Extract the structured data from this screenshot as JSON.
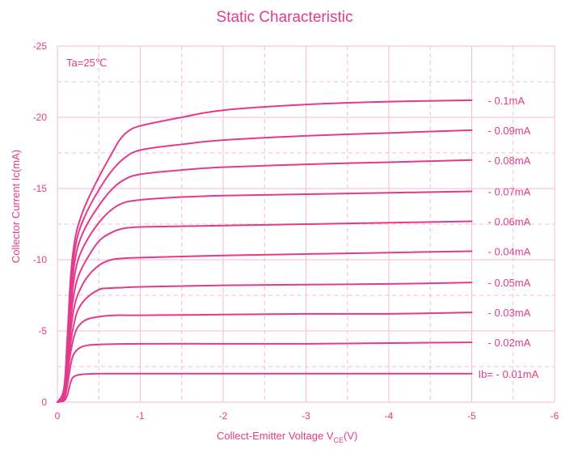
{
  "chart_data": {
    "type": "line",
    "title": "Static Characteristic",
    "xlabel_main": "Collect-Emitter Voltage   V",
    "xlabel_sub": "CE",
    "xlabel_tail": "(V)",
    "ylabel": "Collector  Current   Ic(mA)",
    "annotation": "Ta=25℃",
    "xlim": [
      0,
      -6
    ],
    "ylim": [
      0,
      -25
    ],
    "x_ticks": [
      0,
      -1,
      -2,
      -3,
      -4,
      -5,
      -6
    ],
    "x_tick_labels": [
      "0",
      "-1",
      "-2",
      "-3",
      "-4",
      "-5",
      "-6"
    ],
    "y_ticks": [
      0,
      -5,
      -10,
      -15,
      -20,
      -25
    ],
    "y_tick_labels": [
      "0",
      "-5",
      "-10",
      "-15",
      "-20",
      "-25"
    ],
    "grid": "on",
    "line_color": "#e23a8c",
    "grid_color": "#f7b9d6",
    "series": [
      {
        "name": "Ib= - 0.01mA",
        "x": [
          0,
          -0.08,
          -0.12,
          -0.16,
          -0.2,
          -0.3,
          -0.5,
          -1,
          -2,
          -3,
          -4,
          -5
        ],
        "y": [
          0,
          -0.1,
          -0.5,
          -1.4,
          -1.8,
          -1.95,
          -2.0,
          -2.0,
          -2.0,
          -2.0,
          -2.0,
          -2.0
        ]
      },
      {
        "name": "- 0.02mA",
        "x": [
          0,
          -0.08,
          -0.12,
          -0.16,
          -0.2,
          -0.3,
          -0.5,
          -1,
          -2,
          -3,
          -4,
          -5
        ],
        "y": [
          0,
          -0.2,
          -1.2,
          -2.6,
          -3.4,
          -3.9,
          -4.05,
          -4.1,
          -4.1,
          -4.1,
          -4.15,
          -4.2
        ]
      },
      {
        "name": "- 0.03mA",
        "x": [
          0,
          -0.08,
          -0.12,
          -0.16,
          -0.2,
          -0.25,
          -0.35,
          -0.5,
          -0.7,
          -1,
          -2,
          -3,
          -4,
          -5
        ],
        "y": [
          0,
          -0.3,
          -1.8,
          -3.5,
          -4.6,
          -5.3,
          -5.8,
          -6.0,
          -6.1,
          -6.1,
          -6.15,
          -6.2,
          -6.2,
          -6.3
        ]
      },
      {
        "name": "- 0.05mA",
        "x": [
          0,
          -0.08,
          -0.12,
          -0.16,
          -0.2,
          -0.25,
          -0.35,
          -0.5,
          -0.6,
          -0.8,
          -1,
          -2,
          -3,
          -4,
          -5
        ],
        "y": [
          0,
          -0.4,
          -2.2,
          -4.2,
          -5.5,
          -6.5,
          -7.3,
          -7.9,
          -8.0,
          -8.05,
          -8.1,
          -8.2,
          -8.25,
          -8.3,
          -8.4
        ]
      },
      {
        "name": "- 0.04mA",
        "x": [
          0,
          -0.08,
          -0.12,
          -0.16,
          -0.2,
          -0.25,
          -0.35,
          -0.5,
          -0.65,
          -0.8,
          -1,
          -2,
          -3,
          -4,
          -5
        ],
        "y": [
          0,
          -0.5,
          -2.6,
          -5.0,
          -6.6,
          -7.6,
          -8.7,
          -9.6,
          -10.0,
          -10.1,
          -10.15,
          -10.3,
          -10.4,
          -10.5,
          -10.6
        ]
      },
      {
        "name": "- 0.06mA",
        "x": [
          0,
          -0.08,
          -0.12,
          -0.16,
          -0.2,
          -0.25,
          -0.35,
          -0.5,
          -0.65,
          -0.8,
          -1,
          -1.5,
          -2,
          -3,
          -4,
          -5
        ],
        "y": [
          0,
          -0.6,
          -3.0,
          -5.8,
          -7.6,
          -8.8,
          -10.0,
          -11.3,
          -11.9,
          -12.2,
          -12.3,
          -12.35,
          -12.4,
          -12.5,
          -12.6,
          -12.7
        ]
      },
      {
        "name": "- 0.07mA",
        "x": [
          0,
          -0.08,
          -0.12,
          -0.16,
          -0.2,
          -0.25,
          -0.35,
          -0.5,
          -0.65,
          -0.8,
          -1,
          -1.5,
          -2,
          -3,
          -4,
          -5
        ],
        "y": [
          0,
          -0.7,
          -3.4,
          -6.5,
          -8.6,
          -10.0,
          -11.3,
          -12.6,
          -13.5,
          -14.0,
          -14.2,
          -14.4,
          -14.5,
          -14.6,
          -14.7,
          -14.8
        ]
      },
      {
        "name": "- 0.08mA",
        "x": [
          0,
          -0.08,
          -0.12,
          -0.16,
          -0.2,
          -0.25,
          -0.35,
          -0.5,
          -0.65,
          -0.8,
          -1,
          -1.5,
          -2,
          -3,
          -4,
          -5
        ],
        "y": [
          0,
          -0.8,
          -3.8,
          -7.2,
          -9.5,
          -11.0,
          -12.4,
          -13.8,
          -14.9,
          -15.6,
          -16.0,
          -16.3,
          -16.5,
          -16.7,
          -16.85,
          -17.0
        ]
      },
      {
        "name": "- 0.09mA",
        "x": [
          0,
          -0.08,
          -0.12,
          -0.16,
          -0.2,
          -0.25,
          -0.35,
          -0.5,
          -0.65,
          -0.8,
          -1,
          -1.5,
          -2,
          -3,
          -4,
          -5
        ],
        "y": [
          0,
          -0.9,
          -4.2,
          -8.0,
          -10.3,
          -11.8,
          -13.3,
          -14.9,
          -16.2,
          -17.1,
          -17.7,
          -18.1,
          -18.4,
          -18.7,
          -18.9,
          -19.1
        ]
      },
      {
        "name": "- 0.1mA",
        "x": [
          0,
          -0.08,
          -0.12,
          -0.16,
          -0.2,
          -0.25,
          -0.35,
          -0.5,
          -0.65,
          -0.75,
          -0.85,
          -1,
          -1.5,
          -2,
          -3,
          -4,
          -5
        ],
        "y": [
          0,
          -1.0,
          -4.6,
          -8.8,
          -11.0,
          -12.4,
          -14.0,
          -15.8,
          -17.4,
          -18.4,
          -19.0,
          -19.4,
          -20.0,
          -20.5,
          -20.9,
          -21.1,
          -21.2
        ]
      }
    ]
  }
}
